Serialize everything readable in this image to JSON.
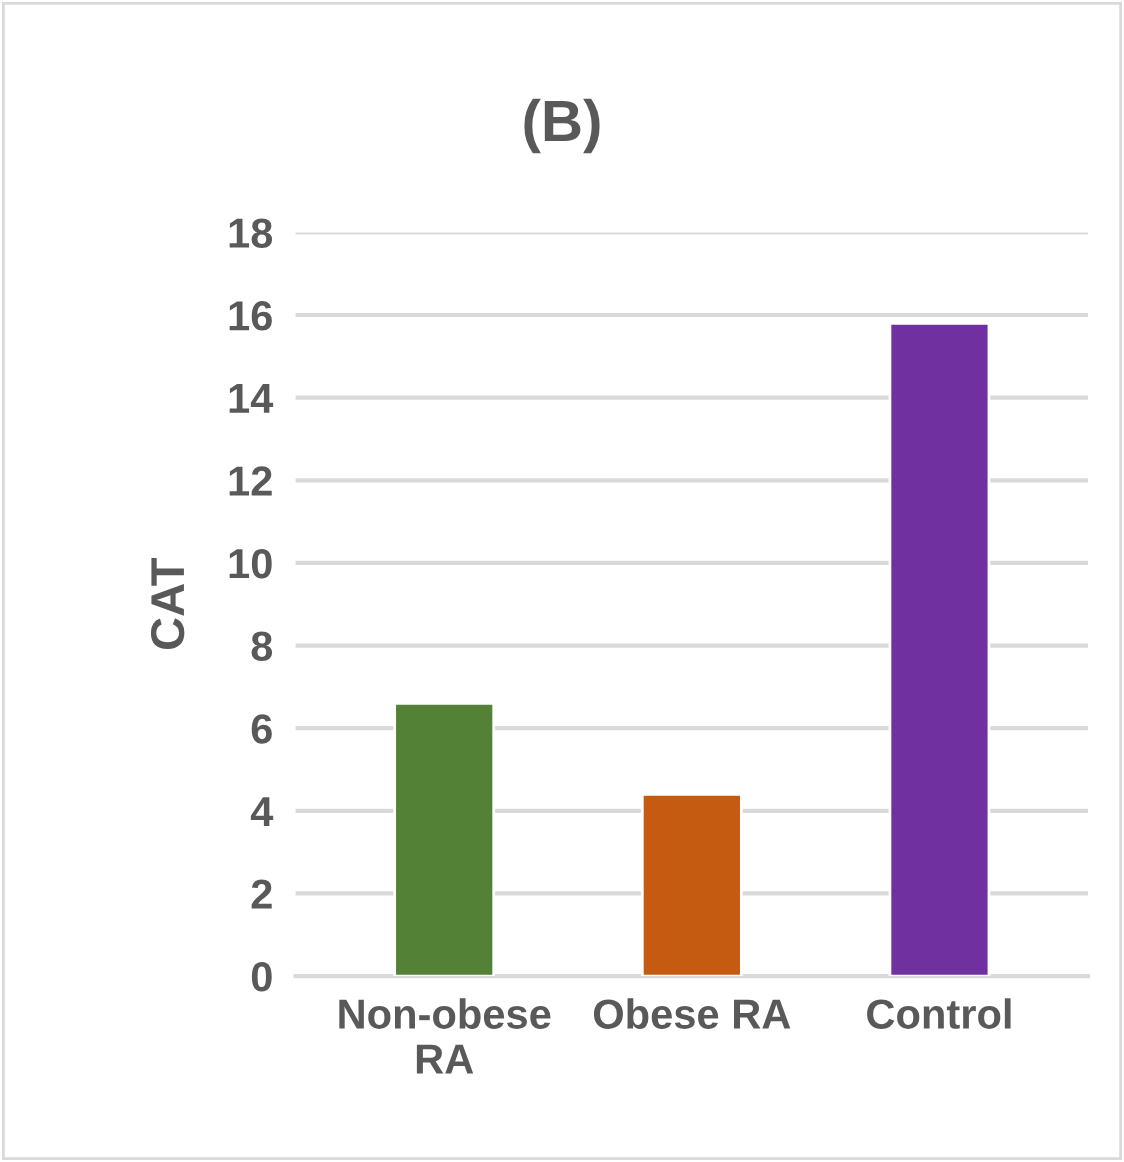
{
  "chart_data": {
    "type": "bar",
    "title": "(B)",
    "ylabel": "CAT",
    "categories": [
      "Non-obese\nRA",
      "Obese RA",
      "Control"
    ],
    "values": [
      6.6,
      4.4,
      15.8
    ],
    "colors": [
      "#538135",
      "#c55a11",
      "#7030a0"
    ],
    "ylim": [
      0,
      18
    ],
    "yticks": [
      0,
      2,
      4,
      6,
      8,
      10,
      12,
      14,
      16,
      18
    ],
    "grid": "y",
    "legend": false
  }
}
